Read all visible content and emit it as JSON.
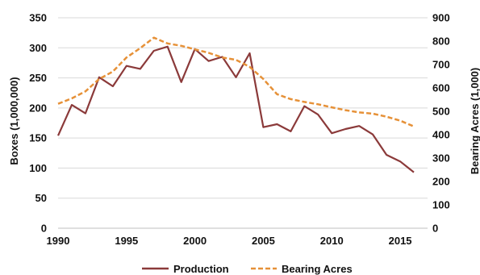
{
  "chart_data": {
    "type": "line",
    "xlabel": "",
    "ylabel": "Boxes (1,000,000)",
    "y2label": "Bearing Acres (1,000)",
    "xlim": [
      1990,
      2017
    ],
    "xticks": [
      1990,
      1995,
      2000,
      2005,
      2010,
      2015
    ],
    "ylim": [
      0,
      350
    ],
    "yticks": [
      0,
      50,
      100,
      150,
      200,
      250,
      300,
      350
    ],
    "y2lim": [
      0,
      900
    ],
    "y2ticks": [
      0,
      100,
      200,
      300,
      400,
      500,
      600,
      700,
      800,
      900
    ],
    "grid": "horizontal",
    "legend": "bottom",
    "series": [
      {
        "name": "Production",
        "axis": "left",
        "color": "#8B3A3A",
        "style": "solid",
        "x": [
          1990,
          1991,
          1992,
          1993,
          1994,
          1995,
          1996,
          1997,
          1998,
          1999,
          2000,
          2001,
          2002,
          2003,
          2004,
          2005,
          2006,
          2007,
          2008,
          2009,
          2010,
          2011,
          2012,
          2013,
          2014,
          2015,
          2016
        ],
        "y": [
          154,
          205,
          191,
          251,
          236,
          270,
          265,
          295,
          302,
          243,
          298,
          278,
          285,
          251,
          291,
          168,
          173,
          161,
          203,
          189,
          158,
          165,
          170,
          156,
          122,
          111,
          93
        ]
      },
      {
        "name": "Bearing Acres",
        "axis": "right",
        "color": "#E69138",
        "style": "dashed",
        "x": [
          1990,
          1991,
          1992,
          1993,
          1994,
          1995,
          1996,
          1997,
          1998,
          1999,
          2000,
          2001,
          2002,
          2003,
          2004,
          2005,
          2006,
          2007,
          2008,
          2009,
          2010,
          2011,
          2012,
          2013,
          2014,
          2015,
          2016
        ],
        "y": [
          532,
          555,
          585,
          638,
          670,
          730,
          770,
          815,
          790,
          780,
          765,
          750,
          730,
          720,
          690,
          638,
          573,
          552,
          540,
          530,
          517,
          505,
          495,
          490,
          477,
          460,
          435
        ]
      }
    ]
  }
}
